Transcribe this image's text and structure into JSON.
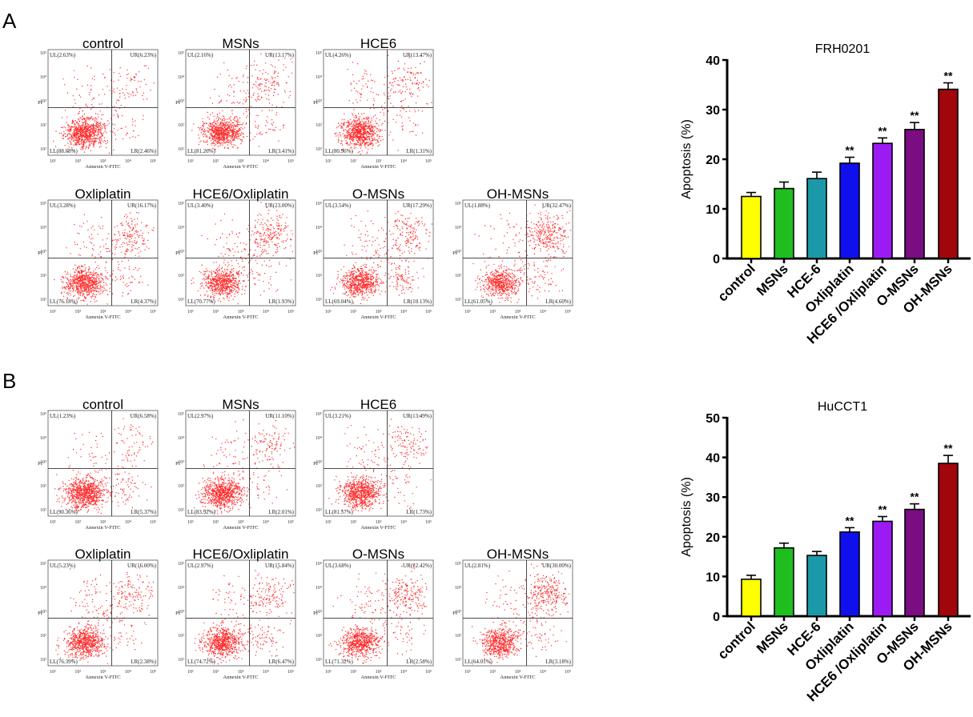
{
  "figure": {
    "panels": [
      {
        "label": "A",
        "flow_panels": [
          {
            "title": "control",
            "ul": "UL(2.63%)",
            "ur": "UR(6.23%)",
            "ll": "LL(88.68%)",
            "lr": "LR(2.46%)"
          },
          {
            "title": "MSNs",
            "ul": "UL(2.16%)",
            "ur": "UR(13.17%)",
            "ll": "LL(81.26%)",
            "lr": "LR(3.41%)"
          },
          {
            "title": "HCE6",
            "ul": "UL(4.26%)",
            "ur": "UR(13.47%)",
            "ll": "LL(80.96%)",
            "lr": "LR(1.31%)"
          },
          {
            "title": "Oxliplatin",
            "ul": "UL(3.28%)",
            "ur": "UR(16.17%)",
            "ll": "LL(76.18%)",
            "lr": "LR(4.37%)"
          },
          {
            "title": "HCE6/Oxliplatin",
            "ul": "UL(3.40%)",
            "ur": "UR(23.00%)",
            "ll": "LL(70.77%)",
            "lr": "LR(1.93%)"
          },
          {
            "title": "O-MSNs",
            "ul": "UL(3.54%)",
            "ur": "UR(17.29%)",
            "ll": "LL(69.04%)",
            "lr": "LR(10.13%)"
          },
          {
            "title": "OH-MSNs",
            "ul": "UL(1.88%)",
            "ur": "UR(32.47%)",
            "ll": "LL(61.05%)",
            "lr": "LR(4.60%)"
          }
        ]
      },
      {
        "label": "B",
        "flow_panels": [
          {
            "title": "control",
            "ul": "UL(1.23%)",
            "ur": "UR(6.58%)",
            "ll": "LL(90.36%)",
            "lr": "LR(5.37%)"
          },
          {
            "title": "MSNs",
            "ul": "UL(2.97%)",
            "ur": "UR(11.10%)",
            "ll": "LL(83.92%)",
            "lr": "LR(2.01%)"
          },
          {
            "title": "HCE6",
            "ul": "UL(3.21%)",
            "ur": "UR(13.49%)",
            "ll": "LL(81.57%)",
            "lr": "LR(1.73%)"
          },
          {
            "title": "Oxliplatin",
            "ul": "UL(5.23%)",
            "ur": "UR(16.00%)",
            "ll": "LL(76.39%)",
            "lr": "LR(2.38%)"
          },
          {
            "title": "HCE6/Oxliplatin",
            "ul": "UL(2.97%)",
            "ur": "UR(15.84%)",
            "ll": "LL(74.72%)",
            "lr": "LR(6.47%)"
          },
          {
            "title": "O-MSNs",
            "ul": "UL(3.68%)",
            "ur": "UR(22.42%)",
            "ll": "LL(71.32%)",
            "lr": "LR(2.58%)"
          },
          {
            "title": "OH-MSNs",
            "ul": "UL(2.81%)",
            "ur": "UR(30.00%)",
            "ll": "LL(64.01%)",
            "lr": "LR(3.18%)"
          }
        ]
      }
    ],
    "flow_axes": {
      "xlabel": "Annexin V-FITC",
      "ylabel": "PI",
      "ticks": [
        "10¹",
        "10²",
        "10³",
        "10⁴",
        "10⁵"
      ]
    },
    "dot_color": "#ff2a2a"
  },
  "chart_data": [
    {
      "type": "bar",
      "title": "FRH0201",
      "xlabel": "",
      "ylabel": "Apoptosis (%)",
      "ylim": [
        0,
        40
      ],
      "yticks": [
        0,
        10,
        20,
        30,
        40
      ],
      "categories": [
        "control",
        "MSNs",
        "HCE-6",
        "Oxliplatin",
        "HCE6 /Oxliplatin",
        "O-MSNs",
        "OH-MSNs"
      ],
      "values": [
        12.5,
        14.1,
        16.1,
        19.2,
        23.2,
        26.0,
        34.1
      ],
      "errors": [
        0.8,
        1.3,
        1.3,
        1.2,
        1.1,
        1.4,
        1.3
      ],
      "significance": [
        "",
        "",
        "",
        "**",
        "**",
        "**",
        "**"
      ],
      "colors": [
        "#ffff00",
        "#1fbf1f",
        "#1b99a8",
        "#1010ee",
        "#9b1bf2",
        "#7a0d82",
        "#a0060b"
      ]
    },
    {
      "type": "bar",
      "title": "HuCCT1",
      "xlabel": "",
      "ylabel": "Apoptosis (%)",
      "ylim": [
        0,
        50
      ],
      "yticks": [
        0,
        10,
        20,
        30,
        40,
        50
      ],
      "categories": [
        "control",
        "MSNs",
        "HCE-6",
        "Oxliplatin",
        "HCE6 /Oxliplatin",
        "O-MSNs",
        "OH-MSNs"
      ],
      "values": [
        9.3,
        17.2,
        15.3,
        21.2,
        23.9,
        26.9,
        38.5
      ],
      "errors": [
        1.0,
        1.2,
        1.0,
        1.1,
        1.2,
        1.4,
        2.0
      ],
      "significance": [
        "",
        "",
        "",
        "**",
        "**",
        "**",
        "**"
      ],
      "colors": [
        "#ffff00",
        "#1fbf1f",
        "#1b99a8",
        "#1010ee",
        "#9b1bf2",
        "#7a0d82",
        "#a0060b"
      ]
    }
  ]
}
